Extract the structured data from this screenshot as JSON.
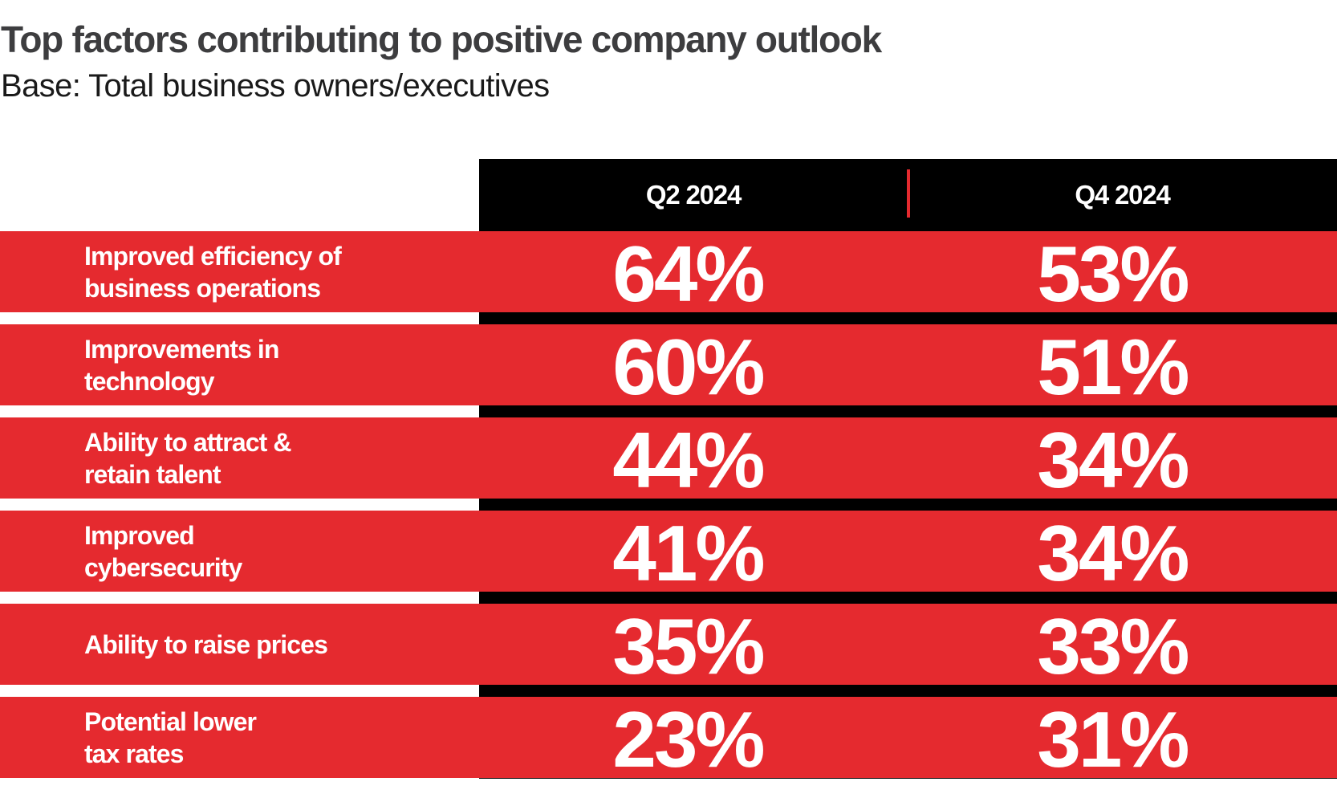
{
  "header": {
    "title": "Top factors contributing to positive company outlook",
    "subtitle": "Base: Total business owners/executives"
  },
  "colors": {
    "accent_red": "#e52a2f",
    "header_black": "#000000",
    "title_gray": "#3d3d3f"
  },
  "table": {
    "columns": [
      "Q2 2024",
      "Q4 2024"
    ],
    "rows": [
      {
        "label": "Improved efficiency of\nbusiness operations",
        "values": [
          "64%",
          "53%"
        ]
      },
      {
        "label": "Improvements in\ntechnology",
        "values": [
          "60%",
          "51%"
        ]
      },
      {
        "label": "Ability to attract &\nretain talent",
        "values": [
          "44%",
          "34%"
        ]
      },
      {
        "label": "Improved\ncybersecurity",
        "values": [
          "41%",
          "34%"
        ]
      },
      {
        "label": "Ability to raise prices",
        "values": [
          "35%",
          "33%"
        ]
      },
      {
        "label": "Potential lower\ntax rates",
        "values": [
          "23%",
          "31%"
        ]
      }
    ]
  },
  "chart_data": {
    "type": "table",
    "title": "Top factors contributing to positive company outlook",
    "subtitle": "Base: Total business owners/executives",
    "categories": [
      "Improved efficiency of business operations",
      "Improvements in technology",
      "Ability to attract & retain talent",
      "Improved cybersecurity",
      "Ability to raise prices",
      "Potential lower tax rates"
    ],
    "series": [
      {
        "name": "Q2 2024",
        "values": [
          64,
          60,
          44,
          41,
          35,
          23
        ]
      },
      {
        "name": "Q4 2024",
        "values": [
          53,
          51,
          34,
          34,
          33,
          31
        ]
      }
    ],
    "unit": "%"
  }
}
